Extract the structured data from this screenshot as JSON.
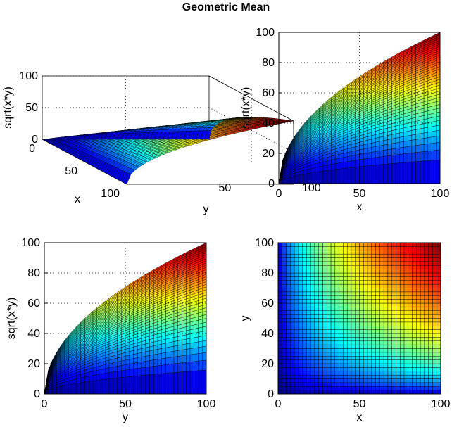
{
  "figure": {
    "title": "Geometric Mean"
  },
  "chart_data": [
    {
      "type": "surface3d",
      "function": "sqrt(x*y)",
      "view": "3d",
      "xlabel": "x",
      "ylabel": "y",
      "zlabel": "sqrt(x*y)",
      "xlim": [
        0,
        100
      ],
      "ylim": [
        0,
        100
      ],
      "zlim": [
        0,
        100
      ],
      "xticks": [
        "0",
        "50",
        "100"
      ],
      "yticks": [
        "50",
        "100"
      ],
      "zticks": [
        "0",
        "50",
        "100"
      ],
      "grid_step": 2.5,
      "colormap": "jet",
      "grid": true
    },
    {
      "type": "surface3d",
      "function": "sqrt(x*y)",
      "view": "x-z",
      "xlabel": "x",
      "ylabel": "sqrt(x*y)",
      "xlim": [
        0,
        100
      ],
      "ylim": [
        0,
        100
      ],
      "xticks": [
        "0",
        "50",
        "100"
      ],
      "yticks": [
        "0",
        "20",
        "40",
        "60",
        "80",
        "100"
      ],
      "colormap": "jet",
      "grid": true
    },
    {
      "type": "surface3d",
      "function": "sqrt(x*y)",
      "view": "y-z",
      "xlabel": "y",
      "ylabel": "sqrt(x*y)",
      "xlim": [
        0,
        100
      ],
      "ylim": [
        0,
        100
      ],
      "xticks": [
        "0",
        "50",
        "100"
      ],
      "yticks": [
        "0",
        "20",
        "40",
        "60",
        "80",
        "100"
      ],
      "colormap": "jet",
      "grid": true
    },
    {
      "type": "heatmap",
      "function": "sqrt(x*y)",
      "view": "top",
      "xlabel": "x",
      "ylabel": "y",
      "xlim": [
        0,
        100
      ],
      "ylim": [
        0,
        100
      ],
      "xticks": [
        "0",
        "50",
        "100"
      ],
      "yticks": [
        "0",
        "20",
        "40",
        "60",
        "80",
        "100"
      ],
      "colormap": "jet",
      "grid": false
    }
  ]
}
